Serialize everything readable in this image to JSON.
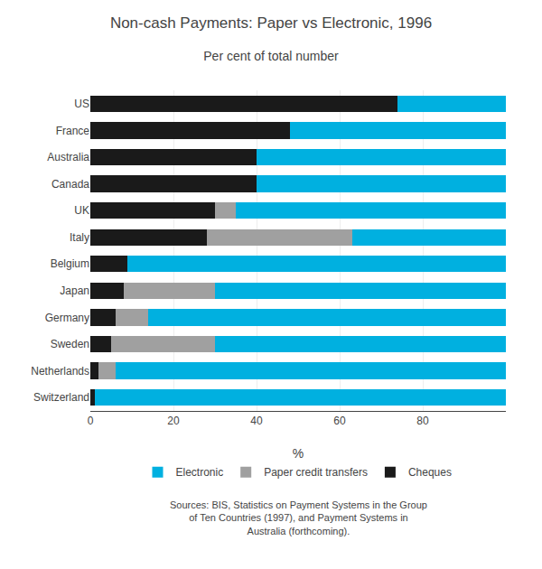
{
  "chart_data": {
    "type": "bar",
    "orientation": "horizontal",
    "stacked": true,
    "title": "Non-cash Payments: Paper vs Electronic, 1996",
    "subtitle": "Per cent of total number",
    "xlabel": "%",
    "categories": [
      "US",
      "France",
      "Australia",
      "Canada",
      "UK",
      "Italy",
      "Belgium",
      "Japan",
      "Germany",
      "Sweden",
      "Netherlands",
      "Switzerland"
    ],
    "series": [
      {
        "name": "Cheques",
        "color": "#1a1a1a",
        "values": [
          74,
          48,
          40,
          40,
          30,
          28,
          9,
          8,
          6,
          5,
          2,
          1
        ]
      },
      {
        "name": "Paper credit transfers",
        "color": "#a0a0a0",
        "values": [
          0,
          0,
          0,
          0,
          5,
          35,
          0,
          22,
          8,
          25,
          4,
          0
        ]
      },
      {
        "name": "Electronic",
        "color": "#00b0e0",
        "values": [
          26,
          52,
          60,
          60,
          65,
          37,
          91,
          70,
          86,
          70,
          94,
          99
        ]
      }
    ],
    "xlim": [
      0,
      100
    ],
    "xticks": [
      0,
      20,
      40,
      60,
      80
    ],
    "grid": true,
    "legend": "bottom",
    "annotations": [
      "Sources: BIS, Statistics on Payment Systems in the Group\nof Ten Countries (1997), and Payment Systems in\nAustralia (forthcoming)."
    ]
  }
}
